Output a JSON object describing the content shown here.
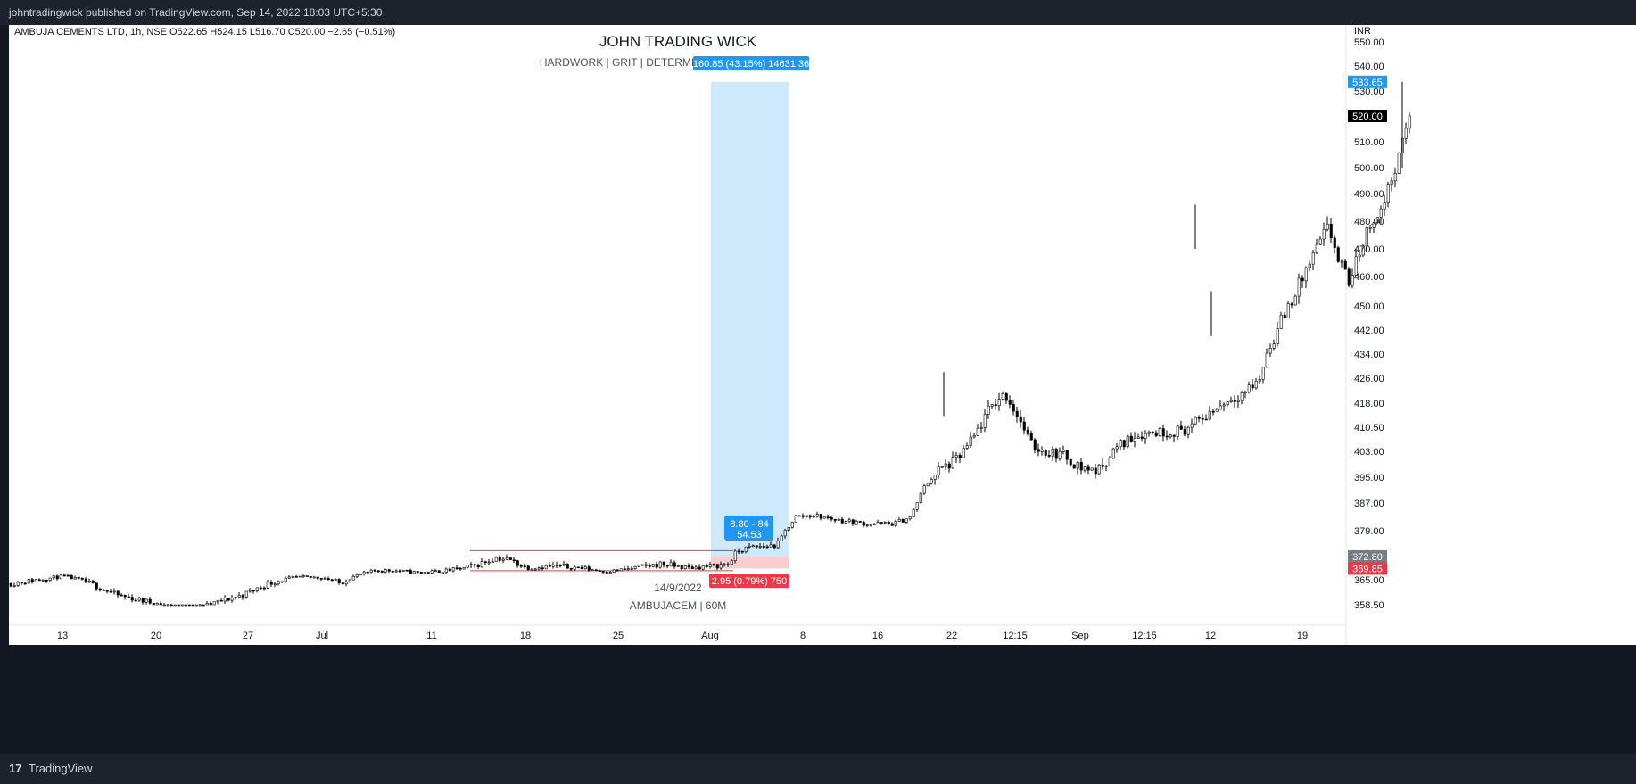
{
  "header": {
    "text": "johntradingwick published on TradingView.com, Sep 14, 2022 18:03 UTC+5:30"
  },
  "footer": {
    "logo": "17",
    "brand": "TradingView"
  },
  "legend": {
    "line": "AMBUJA CEMENTS LTD, 1h, NSE  O522.65  H524.15  L516.70  C520.00  −2.65 (−0.51%)"
  },
  "watermark": {
    "title": "JOHN TRADING WICK",
    "subtitle": "HARDWORK   |   GRIT  |   DETERMINATION   |   DISCIPLINE",
    "date": "14/9/2022",
    "symbol": "AMBUJACEM | 60M"
  },
  "position_tool": {
    "target_label": "160.85 (43.15%) 14631.36",
    "stop_label": "2.95 (0.79%) 750",
    "center_label_1": "8.80 - 84",
    "center_label_2": "54.53",
    "entry": 372.8,
    "stop": 369.85,
    "target": 533.65,
    "target_color": "#2196f3",
    "stop_color": "#f23645"
  },
  "chart_data": {
    "type": "candlestick",
    "currency": "INR",
    "y_ticks": [
      "550.00",
      "540.00",
      "530.00",
      "520.00",
      "510.00",
      "500.00",
      "490.00",
      "480.00",
      "470.00",
      "460.00",
      "450.00",
      "442.00",
      "434.00",
      "426.00",
      "418.00",
      "410.50",
      "403.00",
      "395.00",
      "387.00",
      "379.00",
      "372.80",
      "369.85",
      "365.00",
      "358.50"
    ],
    "x_ticks": [
      "13",
      "20",
      "27",
      "Jul",
      "11",
      "18",
      "25",
      "Aug",
      "8",
      "16",
      "22",
      "12:15",
      "Sep",
      "12:15",
      "12",
      "19"
    ],
    "price_badges": [
      {
        "label": "533.65",
        "color": "#2196f3"
      },
      {
        "label": "520.00",
        "color": "#000000"
      },
      {
        "label": "372.80",
        "color": "#787b86"
      },
      {
        "label": "369.85",
        "color": "#f23645"
      }
    ],
    "last": {
      "open": 522.65,
      "high": 524.15,
      "low": 516.7,
      "close": 520.0,
      "change": -2.65,
      "change_pct": -0.51
    },
    "range_lines": {
      "upper": 374.2,
      "lower": 368.9
    },
    "path": [
      [
        0,
        364
      ],
      [
        30,
        365
      ],
      [
        60,
        366.5
      ],
      [
        90,
        364
      ],
      [
        120,
        361
      ],
      [
        150,
        359.5
      ],
      [
        180,
        358
      ],
      [
        205,
        357
      ],
      [
        230,
        359
      ],
      [
        260,
        361
      ],
      [
        290,
        364
      ],
      [
        320,
        366
      ],
      [
        350,
        366
      ],
      [
        370,
        364
      ],
      [
        390,
        367
      ],
      [
        410,
        369
      ],
      [
        430,
        369
      ],
      [
        460,
        368
      ],
      [
        490,
        369
      ],
      [
        520,
        370.5
      ],
      [
        545,
        372.5
      ],
      [
        560,
        372
      ],
      [
        580,
        370
      ],
      [
        610,
        370.5
      ],
      [
        640,
        370
      ],
      [
        670,
        368.5
      ],
      [
        700,
        370
      ],
      [
        730,
        371
      ],
      [
        760,
        370
      ],
      [
        790,
        370.5
      ],
      [
        805,
        371
      ],
      [
        815,
        374
      ],
      [
        830,
        375
      ],
      [
        860,
        375.5
      ],
      [
        880,
        383
      ],
      [
        900,
        383.5
      ],
      [
        930,
        382
      ],
      [
        960,
        381
      ],
      [
        990,
        381
      ],
      [
        1010,
        383
      ],
      [
        1025,
        392
      ],
      [
        1040,
        397
      ],
      [
        1060,
        400
      ],
      [
        1080,
        407
      ],
      [
        1100,
        417
      ],
      [
        1115,
        421
      ],
      [
        1130,
        414
      ],
      [
        1145,
        405
      ],
      [
        1160,
        403
      ],
      [
        1180,
        402
      ],
      [
        1200,
        398
      ],
      [
        1220,
        397
      ],
      [
        1240,
        404
      ],
      [
        1260,
        408
      ],
      [
        1280,
        409
      ],
      [
        1300,
        409
      ],
      [
        1320,
        410
      ],
      [
        1340,
        414
      ],
      [
        1360,
        418
      ],
      [
        1380,
        421
      ],
      [
        1400,
        425
      ],
      [
        1410,
        435
      ],
      [
        1430,
        448
      ],
      [
        1450,
        460
      ],
      [
        1465,
        470
      ],
      [
        1478,
        478
      ],
      [
        1490,
        465
      ],
      [
        1502,
        458
      ],
      [
        1514,
        470
      ],
      [
        1526,
        480
      ],
      [
        1538,
        484
      ],
      [
        1548,
        495
      ],
      [
        1558,
        505
      ],
      [
        1565,
        515
      ],
      [
        1570,
        520
      ]
    ]
  }
}
